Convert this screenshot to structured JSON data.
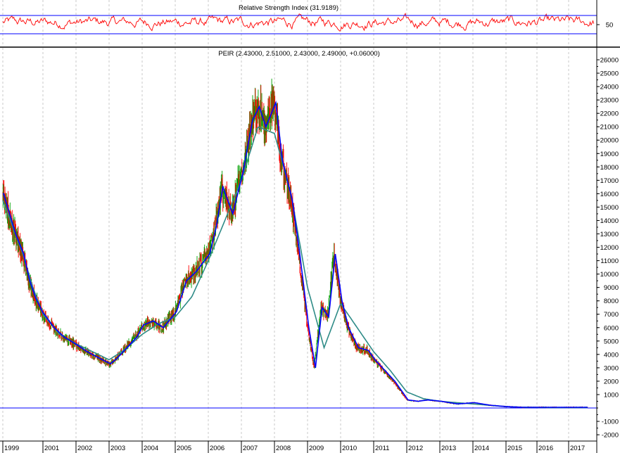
{
  "chart_data": [
    {
      "type": "line",
      "title": "Relative Strength Index (31.9189)",
      "y_ticks": [
        50
      ],
      "reference_lines": [
        30,
        70
      ],
      "ylim": [
        0,
        100
      ],
      "grid": true,
      "colors": {
        "rsi": "#ff0000",
        "reference": "#0000ff"
      }
    },
    {
      "type": "line",
      "title": "PEIR (2.43000, 2.51000, 2.43000, 2.49000, +0.06000)",
      "ylim": [
        -2000,
        26000
      ],
      "y_ticks": [
        -2000,
        -1000,
        1000,
        2000,
        3000,
        4000,
        5000,
        6000,
        7000,
        8000,
        9000,
        10000,
        11000,
        12000,
        13000,
        14000,
        15000,
        16000,
        17000,
        18000,
        19000,
        20000,
        21000,
        22000,
        23000,
        24000,
        25000,
        26000
      ],
      "x_ticks": [
        "1999",
        "2001",
        "2002",
        "2003",
        "2004",
        "2005",
        "2006",
        "2007",
        "2008",
        "2009",
        "2010",
        "2011",
        "2012",
        "2013",
        "2014",
        "2015",
        "2016",
        "2017"
      ],
      "baseline": 0,
      "grid": true,
      "colors": {
        "price_up": "#00a000",
        "price_down": "#ff0000",
        "ma_short": "#0000ff",
        "ma_long": "#2e8b87",
        "baseline": "#0000ff"
      },
      "series": [
        {
          "x": [
            1999.0,
            1999.3,
            1999.6,
            2000.0,
            2000.3,
            2000.6,
            2001.0,
            2001.3,
            2001.6,
            2002.0,
            2002.3,
            2002.6,
            2003.0,
            2003.2,
            2003.5,
            2003.8,
            2004.0,
            2004.3,
            2004.6,
            2005.0,
            2005.3,
            2005.6,
            2006.0,
            2006.2,
            2006.4,
            2006.7,
            2007.0,
            2007.3,
            2007.5,
            2007.7,
            2008.0,
            2008.2,
            2008.5,
            2008.7,
            2009.0,
            2009.2,
            2009.4,
            2009.6,
            2009.8,
            2010.0,
            2010.2,
            2010.5,
            2010.8,
            2011.0,
            2011.3,
            2011.6,
            2012.0,
            2012.3,
            2012.6,
            2013.0,
            2013.5,
            2014.0,
            2014.5,
            2015.0,
            2015.5,
            2016.0,
            2016.5,
            2017.0,
            2017.5
          ],
          "values": [
            16000,
            14500,
            13000,
            11500,
            9500,
            8200,
            7000,
            6000,
            5300,
            4700,
            4200,
            3800,
            3300,
            3700,
            4500,
            5300,
            6200,
            6500,
            6000,
            7200,
            9500,
            10200,
            11500,
            13500,
            16500,
            14500,
            17500,
            21500,
            22500,
            21000,
            22800,
            18500,
            15500,
            12000,
            6000,
            3000,
            7500,
            6800,
            11500,
            8000,
            6000,
            4500,
            4300,
            3600,
            2800,
            2000,
            600,
            500,
            600,
            500,
            300,
            400,
            200,
            100,
            50,
            50,
            50,
            50,
            50
          ]
        },
        {
          "x": [
            1999.0,
            1999.5,
            2000.0,
            2000.5,
            2001.0,
            2001.5,
            2002.0,
            2002.5,
            2003.0,
            2003.5,
            2004.0,
            2004.5,
            2005.0,
            2005.5,
            2006.0,
            2006.5,
            2007.0,
            2007.5,
            2008.0,
            2008.5,
            2009.0,
            2009.5,
            2010.0,
            2010.5,
            2011.0,
            2011.5,
            2012.0,
            2012.5,
            2013.0,
            2013.5,
            2014.0,
            2014.5,
            2015.0,
            2015.5,
            2016.0,
            2016.5,
            2017.0,
            2017.5
          ],
          "values": [
            15500,
            13500,
            11500,
            9000,
            7000,
            5500,
            4800,
            4200,
            3600,
            4400,
            5500,
            6300,
            6800,
            8300,
            11000,
            14000,
            17000,
            21000,
            20500,
            16000,
            9000,
            4500,
            7800,
            6000,
            4200,
            2800,
            1200,
            700,
            500,
            400,
            300,
            200,
            100,
            60,
            40,
            30,
            30,
            30
          ]
        }
      ]
    }
  ]
}
